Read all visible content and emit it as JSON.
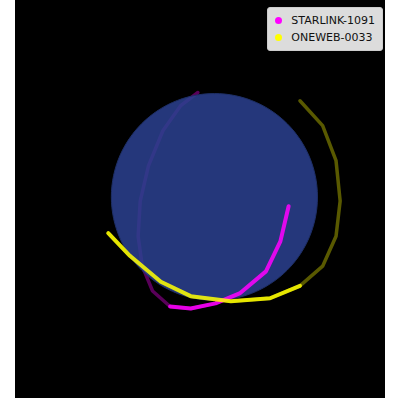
{
  "chart_data": {
    "type": "line",
    "series": [
      {
        "name": "STARLINK-1091",
        "color": "#ff00ff",
        "x": [
          0.72,
          0.64,
          0.5,
          0.25,
          0.01,
          -0.23,
          -0.43,
          -0.6,
          -0.7,
          -0.74,
          -0.72,
          -0.64,
          -0.5,
          -0.33,
          -0.16
        ],
        "y": [
          -0.09,
          -0.43,
          -0.72,
          -0.93,
          -1.03,
          -1.08,
          -1.06,
          -0.91,
          -0.67,
          -0.38,
          -0.04,
          0.3,
          0.64,
          0.88,
          1.01
        ],
        "z": [
          0.8,
          0.7,
          0.55,
          0.45,
          0.35,
          0.15,
          0.02,
          -0.1,
          -0.45,
          -0.6,
          -0.75,
          -0.75,
          -0.62,
          -0.45,
          -0.3
        ]
      },
      {
        "name": "ONEWEB-0033",
        "color": "#ffff00",
        "x": [
          -1.03,
          -0.82,
          -0.52,
          -0.23,
          0.16,
          0.54,
          0.83,
          1.05,
          1.18,
          1.22,
          1.18,
          1.05,
          0.83
        ],
        "y": [
          -0.35,
          -0.57,
          -0.82,
          -0.96,
          -1.01,
          -0.98,
          -0.86,
          -0.67,
          -0.38,
          -0.04,
          0.35,
          0.69,
          0.93
        ],
        "z": [
          0.5,
          0.55,
          0.5,
          0.45,
          0.3,
          0.15,
          0.02,
          -0.15,
          -0.3,
          -0.4,
          -0.5,
          -0.6,
          -0.7
        ]
      }
    ],
    "earth_radius": 1,
    "xlim": [
      -1.93,
      1.66
    ],
    "ylim": [
      -1.95,
      1.9
    ],
    "tick_labels": false,
    "legend": "upper right"
  }
}
